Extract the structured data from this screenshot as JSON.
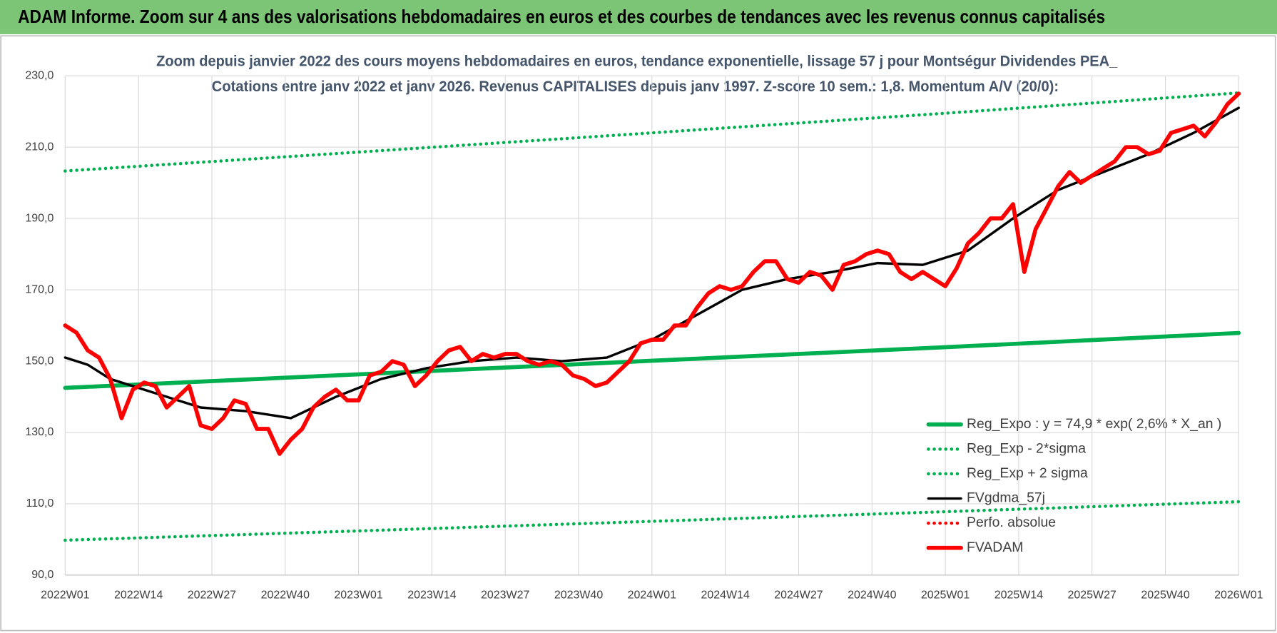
{
  "page_title": "ADAM Informe. Zoom sur 4 ans des valorisations hebdomadaires en euros et des courbes de tendances avec les revenus connus capitalisés",
  "chart_data": {
    "type": "line",
    "title": "Zoom depuis janvier 2022 des cours moyens hebdomadaires en euros, tendance exponentielle, lissage 57 j pour Montségur Dividendes PEA_",
    "subtitle": "Cotations entre janv 2022 et janv 2026. Revenus CAPITALISES depuis janv 1997. Z-score 10 sem.: 1,8. Momentum A/V (20/0):",
    "xlim": [
      0,
      208
    ],
    "xticks": [
      {
        "value": 0,
        "label": "2022W01"
      },
      {
        "value": 13,
        "label": "2022W14"
      },
      {
        "value": 26,
        "label": "2022W27"
      },
      {
        "value": 39,
        "label": "2022W40"
      },
      {
        "value": 52,
        "label": "2023W01"
      },
      {
        "value": 65,
        "label": "2023W14"
      },
      {
        "value": 78,
        "label": "2023W27"
      },
      {
        "value": 91,
        "label": "2023W40"
      },
      {
        "value": 104,
        "label": "2024W01"
      },
      {
        "value": 117,
        "label": "2024W14"
      },
      {
        "value": 130,
        "label": "2024W27"
      },
      {
        "value": 143,
        "label": "2024W40"
      },
      {
        "value": 156,
        "label": "2025W01"
      },
      {
        "value": 169,
        "label": "2025W14"
      },
      {
        "value": 182,
        "label": "2025W27"
      },
      {
        "value": 195,
        "label": "2025W40"
      },
      {
        "value": 208,
        "label": "2026W01"
      }
    ],
    "ylim": [
      90,
      230
    ],
    "yticks": [
      {
        "value": 90,
        "label": "90,0"
      },
      {
        "value": 110,
        "label": "110,0"
      },
      {
        "value": 130,
        "label": "130,0"
      },
      {
        "value": 150,
        "label": "150,0"
      },
      {
        "value": 170,
        "label": "170,0"
      },
      {
        "value": 190,
        "label": "190,0"
      },
      {
        "value": 210,
        "label": "210,0"
      },
      {
        "value": 230,
        "label": "230,0"
      }
    ],
    "grid": true,
    "legend": "bottom-right",
    "series": [
      {
        "name": "Reg_Expo : y = 74,9 * exp( 2,6% *  X_an )",
        "color": "#00b050",
        "dash": "solid",
        "x": [
          0,
          52,
          104,
          156,
          208
        ],
        "values": [
          142.5,
          146.3,
          150.1,
          153.9,
          157.9
        ]
      },
      {
        "name": "Reg_Exp - 2*sigma",
        "color": "#00b050",
        "dash": "dotted",
        "x": [
          0,
          52,
          104,
          156,
          208
        ],
        "values": [
          99.8,
          102.4,
          105.1,
          107.8,
          110.6
        ]
      },
      {
        "name": "Reg_Exp + 2 sigma",
        "color": "#00b050",
        "dash": "dotted",
        "x": [
          0,
          52,
          104,
          156,
          208
        ],
        "values": [
          203.3,
          208.6,
          214.0,
          219.5,
          225.2
        ]
      },
      {
        "name": "FVgdma_57j",
        "color": "#000000",
        "dash": "solid",
        "x": [
          0,
          4,
          8,
          16,
          24,
          32,
          40,
          48,
          56,
          64,
          72,
          80,
          88,
          96,
          104,
          112,
          120,
          128,
          136,
          144,
          152,
          160,
          168,
          176,
          184,
          192,
          200,
          208
        ],
        "values": [
          151,
          149,
          145,
          141,
          137,
          136,
          134,
          140,
          145,
          148,
          150,
          151,
          150,
          151,
          156,
          163,
          170,
          173,
          175,
          177.5,
          177,
          181,
          190,
          198,
          203,
          208,
          214,
          221
        ]
      },
      {
        "name": "Perfo. absolue",
        "color": "#ff0000",
        "dash": "dotted",
        "x": [],
        "values": []
      },
      {
        "name": "FVADAM",
        "color": "#ff0000",
        "dash": "solid",
        "x": [
          0,
          2,
          4,
          6,
          8,
          10,
          12,
          14,
          16,
          18,
          20,
          22,
          24,
          26,
          28,
          30,
          32,
          34,
          36,
          38,
          40,
          42,
          44,
          46,
          48,
          50,
          52,
          54,
          56,
          58,
          60,
          62,
          64,
          66,
          68,
          70,
          72,
          74,
          76,
          78,
          80,
          82,
          84,
          86,
          88,
          90,
          92,
          94,
          96,
          98,
          100,
          102,
          104,
          106,
          108,
          110,
          112,
          114,
          116,
          118,
          120,
          122,
          124,
          126,
          128,
          130,
          132,
          134,
          136,
          138,
          140,
          142,
          144,
          146,
          148,
          150,
          152,
          154,
          156,
          158,
          160,
          162,
          164,
          166,
          168,
          170,
          172,
          174,
          176,
          178,
          180,
          182,
          184,
          186,
          188,
          190,
          192,
          194,
          196,
          198,
          200,
          202,
          204,
          206,
          208
        ],
        "values": [
          160,
          158,
          153,
          151,
          145,
          134,
          142,
          144,
          143,
          137,
          140,
          143,
          132,
          131,
          134,
          139,
          138,
          131,
          131,
          124,
          128,
          131,
          137,
          140,
          142,
          139,
          139,
          146,
          147,
          150,
          149,
          143,
          146,
          150,
          153,
          154,
          150,
          152,
          151,
          152,
          152,
          150,
          149,
          150,
          149,
          146,
          145,
          143,
          144,
          147,
          150,
          155,
          156,
          156,
          160,
          160,
          165,
          169,
          171,
          170,
          171,
          175,
          178,
          178,
          173,
          172,
          175,
          174,
          170,
          177,
          178,
          180,
          181,
          180,
          175,
          173,
          175,
          173,
          171,
          176,
          183,
          186,
          190,
          190,
          194,
          175,
          187,
          193,
          199,
          203,
          200,
          202,
          204,
          206,
          210,
          210,
          208,
          209,
          214,
          215,
          216,
          213,
          217,
          222,
          225
        ]
      }
    ]
  }
}
